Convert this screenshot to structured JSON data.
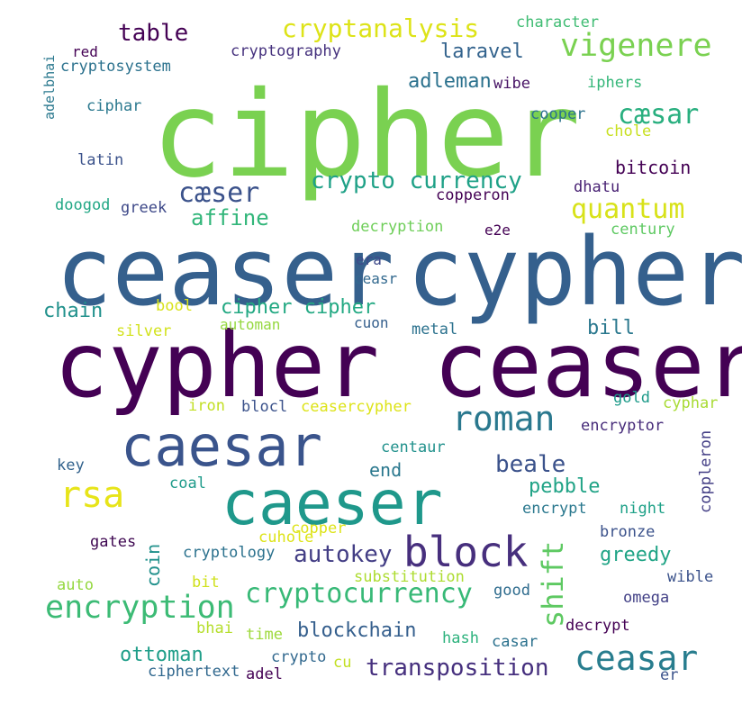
{
  "words": [
    {
      "text": "cipher",
      "color": "#7ad151"
    },
    {
      "text": "ceaser",
      "color": "#35608d"
    },
    {
      "text": "cypher",
      "color": "#35608d"
    },
    {
      "text": "cypher ceaser",
      "color": "#440154"
    },
    {
      "text": "caesar",
      "color": "#3a548c"
    },
    {
      "text": "caeser",
      "color": "#1f988b"
    },
    {
      "text": "rsa",
      "color": "#e7e419"
    },
    {
      "text": "roman",
      "color": "#2a788e"
    },
    {
      "text": "block",
      "color": "#472f7d"
    },
    {
      "text": "ceasar",
      "color": "#287d8e"
    },
    {
      "text": "encryption",
      "color": "#3cbb75"
    },
    {
      "text": "cryptocurrency",
      "color": "#38b977"
    },
    {
      "text": "transposition",
      "color": "#46307e"
    },
    {
      "text": "vigenere",
      "color": "#7ad151"
    },
    {
      "text": "cryptanalysis",
      "color": "#dde318"
    },
    {
      "text": "table",
      "color": "#440154"
    },
    {
      "text": "laravel",
      "color": "#33638d"
    },
    {
      "text": "adleman",
      "color": "#2c728e"
    },
    {
      "text": "cæsar",
      "color": "#29af7f"
    },
    {
      "text": "crypto currency",
      "color": "#1fa187"
    },
    {
      "text": "cæser",
      "color": "#3b528b"
    },
    {
      "text": "affine",
      "color": "#32b67a"
    },
    {
      "text": "quantum",
      "color": "#d8e219"
    },
    {
      "text": "bitcoin",
      "color": "#440154"
    },
    {
      "text": "cipher cipher",
      "color": "#23a983"
    },
    {
      "text": "chain",
      "color": "#21918c"
    },
    {
      "text": "bill",
      "color": "#2a788e"
    },
    {
      "text": "shift",
      "color": "#5ec962"
    },
    {
      "text": "autokey",
      "color": "#433e85"
    },
    {
      "text": "blockchain",
      "color": "#355f8d"
    },
    {
      "text": "ottoman",
      "color": "#1f9e89"
    },
    {
      "text": "beale",
      "color": "#3b528b"
    },
    {
      "text": "pebble",
      "color": "#20a386"
    },
    {
      "text": "greedy",
      "color": "#20a486"
    },
    {
      "text": "end",
      "color": "#2a788e"
    },
    {
      "text": "coin",
      "color": "#21918c"
    },
    {
      "text": "character",
      "color": "#3fbc73"
    },
    {
      "text": "red",
      "color": "#440154"
    },
    {
      "text": "cryptography",
      "color": "#46327e"
    },
    {
      "text": "cryptosystem",
      "color": "#2c728e"
    },
    {
      "text": "adelbhai",
      "color": "#2a788e"
    },
    {
      "text": "wibe",
      "color": "#471365"
    },
    {
      "text": "iphers",
      "color": "#35b779"
    },
    {
      "text": "ciphar",
      "color": "#2a788e"
    },
    {
      "text": "cooper",
      "color": "#2c728e"
    },
    {
      "text": "chole",
      "color": "#c8e020"
    },
    {
      "text": "latin",
      "color": "#3b528b"
    },
    {
      "text": "copperon",
      "color": "#440154"
    },
    {
      "text": "dhatu",
      "color": "#482173"
    },
    {
      "text": "doogod",
      "color": "#22a785"
    },
    {
      "text": "greek",
      "color": "#3e4989"
    },
    {
      "text": "decryption",
      "color": "#6ece58"
    },
    {
      "text": "e2e",
      "color": "#440154"
    },
    {
      "text": "century",
      "color": "#5ec962"
    },
    {
      "text": "era",
      "color": "#3e4989"
    },
    {
      "text": "ceasr",
      "color": "#31688e"
    },
    {
      "text": "bool",
      "color": "#d8e219"
    },
    {
      "text": "silver",
      "color": "#d2e21b"
    },
    {
      "text": "automan",
      "color": "#95d840"
    },
    {
      "text": "cuon",
      "color": "#355f8d"
    },
    {
      "text": "metal",
      "color": "#2c728e"
    },
    {
      "text": "iron",
      "color": "#c2df23"
    },
    {
      "text": "blocl",
      "color": "#3b528b"
    },
    {
      "text": "ceasercypher",
      "color": "#dde318"
    },
    {
      "text": "gold",
      "color": "#1e9b8a"
    },
    {
      "text": "cyphar",
      "color": "#a8db34"
    },
    {
      "text": "encryptor",
      "color": "#472c7a"
    },
    {
      "text": "centaur",
      "color": "#21918c"
    },
    {
      "text": "coppleron",
      "color": "#433e85"
    },
    {
      "text": "key",
      "color": "#33638d"
    },
    {
      "text": "coal",
      "color": "#1e9b8a"
    },
    {
      "text": "encrypt",
      "color": "#2a788e"
    },
    {
      "text": "night",
      "color": "#1fa188"
    },
    {
      "text": "copper",
      "color": "#dde318"
    },
    {
      "text": "cuhole",
      "color": "#dde318"
    },
    {
      "text": "bronze",
      "color": "#3b528b"
    },
    {
      "text": "gates",
      "color": "#3e0751"
    },
    {
      "text": "cryptology",
      "color": "#2c728e"
    },
    {
      "text": "substitution",
      "color": "#addc30"
    },
    {
      "text": "wible",
      "color": "#3b528b"
    },
    {
      "text": "auto",
      "color": "#95d840"
    },
    {
      "text": "bit",
      "color": "#d0e11c"
    },
    {
      "text": "good",
      "color": "#2f6c8e"
    },
    {
      "text": "omega",
      "color": "#424086"
    },
    {
      "text": "bhai",
      "color": "#b5de2b"
    },
    {
      "text": "time",
      "color": "#9dd93b"
    },
    {
      "text": "hash",
      "color": "#2db27d"
    },
    {
      "text": "decrypt",
      "color": "#440154"
    },
    {
      "text": "crypto",
      "color": "#31688e"
    },
    {
      "text": "cu",
      "color": "#c2df23"
    },
    {
      "text": "casar",
      "color": "#2c728e"
    },
    {
      "text": "ciphertext",
      "color": "#31688e"
    },
    {
      "text": "adel",
      "color": "#440154"
    },
    {
      "text": "er",
      "color": "#3b528b"
    }
  ]
}
